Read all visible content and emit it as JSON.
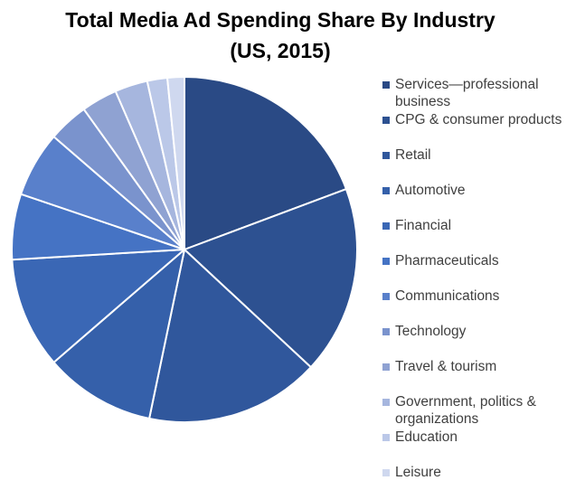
{
  "chart_data": {
    "type": "pie",
    "title": "Total Media Ad Spending Share By Industry",
    "subtitle": "(US, 2015)",
    "categories": [
      "Services—professional business",
      "CPG & consumer products",
      "Retail",
      "Automotive",
      "Financial",
      "Pharmaceuticals",
      "Communications",
      "Technology",
      "Travel & tourism",
      "Government, politics & organizations",
      "Education",
      "Leisure"
    ],
    "values": [
      19.5,
      17.8,
      16.5,
      10.5,
      10.5,
      6.2,
      6.2,
      3.8,
      3.4,
      3.1,
      1.9,
      1.6
    ],
    "unit": "%",
    "colors": [
      "#2a4a85",
      "#2d5191",
      "#30579c",
      "#3560aa",
      "#3a67b5",
      "#4573c4",
      "#5980cb",
      "#7a93cd",
      "#8fa2d2",
      "#a6b6de",
      "#bbc8e8",
      "#cfd8ef"
    ],
    "legend": "right",
    "start_angle_deg": 0,
    "direction": "clockwise"
  }
}
